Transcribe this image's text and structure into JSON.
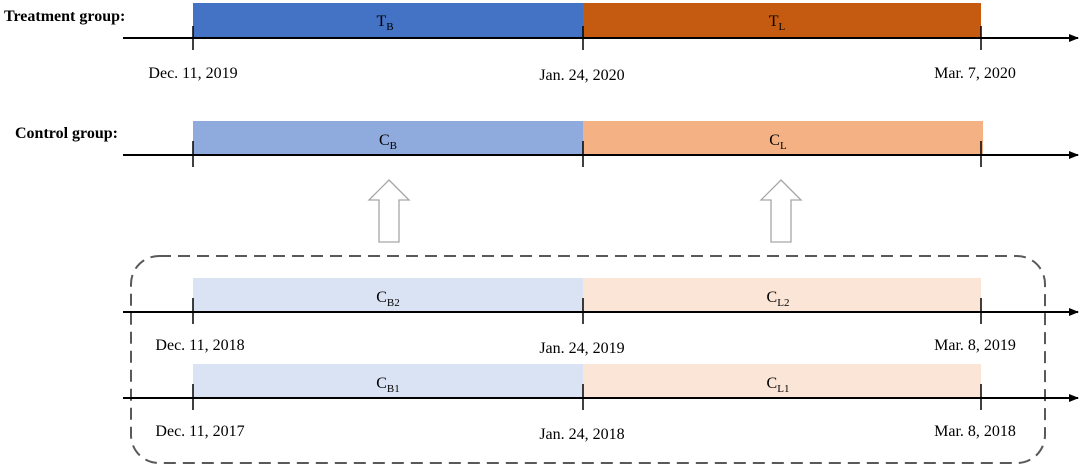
{
  "treatment": {
    "label": "Treatment group:",
    "start": "Dec. 11, 2019",
    "mid": "Jan. 24, 2020",
    "end": "Mar. 7, 2020",
    "seg1": {
      "main": "T",
      "sub": "B"
    },
    "seg2": {
      "main": "T",
      "sub": "L"
    }
  },
  "control": {
    "label": "Control group:",
    "seg1": {
      "main": "C",
      "sub": "B"
    },
    "seg2": {
      "main": "C",
      "sub": "L"
    }
  },
  "control_2019": {
    "start": "Dec. 11, 2018",
    "mid": "Jan. 24, 2019",
    "end": "Mar. 8, 2019",
    "seg1": {
      "main": "C",
      "sub": "B2"
    },
    "seg2": {
      "main": "C",
      "sub": "L2"
    }
  },
  "control_2018": {
    "start": "Dec. 11, 2017",
    "mid": "Jan. 24, 2018",
    "end": "Mar. 8, 2018",
    "seg1": {
      "main": "C",
      "sub": "B1"
    },
    "seg2": {
      "main": "C",
      "sub": "L1"
    }
  },
  "colors": {
    "treatment_before": "#4472C4",
    "treatment_lockdown": "#C55A11",
    "control_before": "#8FAADC",
    "control_lockdown": "#F4B183",
    "history_before": "#DAE3F3",
    "history_lockdown": "#FBE5D6",
    "axis": "#000000",
    "arrow_outline": "#A6A6A6",
    "dashed_box": "#595959"
  }
}
